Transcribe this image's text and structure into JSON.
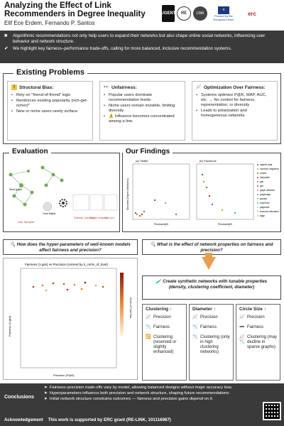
{
  "header": {
    "title": "Analyzing the Effect of Link Recommenders in Degree Inequality",
    "authors": "Elif Ece Erdem, Fernando P. Santos",
    "logos": {
      "ugent": "UGENT",
      "re": "RE",
      "link": "LINK",
      "eu": "Funded by the European Union",
      "erc": "erc"
    }
  },
  "intro": [
    {
      "icon": "■",
      "text": "Algorithmic recommendations not only help users to expand their networks but also shape online social networks, influencing user behavior and network structure."
    },
    {
      "icon": "✔",
      "text": "We highlight key fairness–performance trade-offs, calling for more balanced, inclusive recommendation systems."
    }
  ],
  "problems": {
    "title": "Existing Problems",
    "cols": [
      {
        "head": "Structural Bias:",
        "items": [
          "Rely on \"friend-of-friend\" logic",
          "Reinforces existing popularity (rich-get-richer)*",
          "New or niche users rarely surface"
        ]
      },
      {
        "head": "Unfairness:",
        "items": [
          "Popular users dominate recommendation feeds.",
          "Niche users remain invisible, limiting diversity",
          "⚠️ Influence becomes concentrated among a few."
        ]
      },
      {
        "head": "Optimization Over Fairness:",
        "items": [
          "Systems optimize P@K, MAP, AUC, etc. → No control for fairness, representation, or diversity",
          "Leads to polarization and homogeneous networks"
        ]
      }
    ]
  },
  "evaluation": {
    "title": "Evaluation",
    "labels": {
      "seed": "Seed graph",
      "link": "Link Sampler",
      "trust": "Trust Matrix",
      "similarity": "Similarity Calculation",
      "deg": "Degree Inequality",
      "evaluation": "Evaluation"
    }
  },
  "findings": {
    "title": "Our Findings",
    "panel_a": "(a) Twitter",
    "panel_b": "(b) Facebook",
    "ylabel": "Gini Index (Degree Distribution)",
    "xlabel_a": "Precision@K",
    "xlabel_b": "Precision@K",
    "legend": [
      "adamic adar",
      "common neighbors",
      "cosine",
      "deepwalk",
      "gae",
      "gcn",
      "graph distance",
      "graphsage",
      "jaccard",
      "node2vec",
      "pagerank",
      "resource allocation",
      "sage"
    ]
  },
  "questions": {
    "q1": "How does the hyper-parameters of well-known models affect fairness and precision?",
    "q2": "What is the effect of network properties on fairness and precision?",
    "create": "Create synthetic networks with tunable properties (density, clustering coefficient, diameter)"
  },
  "bigchart": {
    "title": "Fairness (1-gini) vs Precision (colored by k_circle_of_trust)",
    "xlabel": "Precision (P@K)",
    "ylabel": "Fairness (1-gini)",
    "cbar": "Circle of Trust Size"
  },
  "props": [
    {
      "title": "Clustering ↑",
      "items": [
        {
          "icon": "📈",
          "text": "Precision"
        },
        {
          "icon": "📉",
          "text": "Fairness"
        },
        {
          "icon": "🔁",
          "text": "Clustering (reserved or slightly enhanced)"
        }
      ]
    },
    {
      "title": "Diameter ↑",
      "items": [
        {
          "icon": "📈",
          "text": "Precision"
        },
        {
          "icon": "📉",
          "text": "Fairness"
        },
        {
          "icon": "📉",
          "text": "Clustering (only in high clustering networks)"
        }
      ]
    },
    {
      "title": "Circle Size ↑",
      "items": [
        {
          "icon": "📈",
          "text": "Precision"
        },
        {
          "icon": "➖",
          "text": "Fairness"
        },
        {
          "icon": "📈📉",
          "text": "Clustering (may decline in sparse graphs)"
        }
      ]
    }
  ],
  "footer": {
    "conclusions_label": "Conclusions",
    "conclusions": [
      "Fairness–precision trade-offs vary by model, allowing balanced designs without major accuracy loss.",
      "Hyperparameters influence both precision and network structure, shaping future recommendations.",
      "Initial network structure constrains outcomes — fairness and precision gains depend on it."
    ],
    "ack_label": "Acknowledgement",
    "ack_text": "This work is supported by ERC grant (RE-LINK, 101116987)"
  },
  "colors": {
    "dark": "#3a3a3a",
    "accent": "#e8a050",
    "chart_point": "#c0392b"
  }
}
